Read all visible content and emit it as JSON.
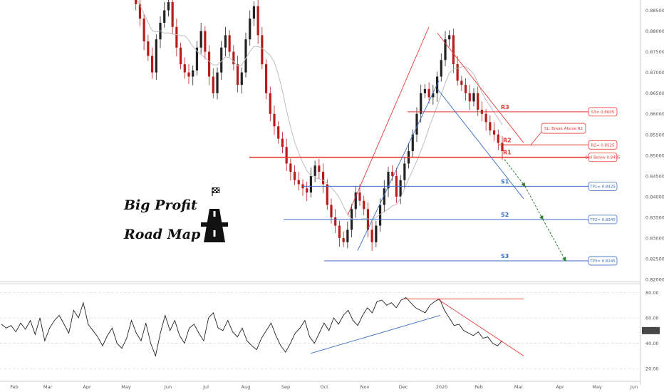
{
  "branding": {
    "line1": "Big Profit",
    "line2": "Road Map",
    "logo_icon": "road-icon",
    "flag_icon": "checkered-flag-icon"
  },
  "colors": {
    "up": "#222222",
    "down": "#b71c1c",
    "resistance": "#e53935",
    "support": "#3a6fc4",
    "projection": "#2e7d32",
    "ma": "#bdbdbd"
  },
  "chart_data": [
    {
      "type": "candlestick",
      "title": "",
      "x_tick_labels": [
        "Feb",
        "Mar",
        "Apr",
        "May",
        "Jun",
        "Jul",
        "Aug",
        "Sep",
        "Oct",
        "Nov",
        "Dec",
        "2020",
        "Feb",
        "Mar",
        "Apr",
        "May",
        "Jun"
      ],
      "y_tick_labels": [
        "0.88500",
        "0.88000",
        "0.87500",
        "0.87000",
        "0.86500",
        "0.86000",
        "0.85500",
        "0.85000",
        "0.84500",
        "0.84000",
        "0.83500",
        "0.83000",
        "0.82500",
        "0.82000"
      ],
      "ylim": [
        0.8195,
        0.8875
      ],
      "series_closes": [
        0.8895,
        0.8865,
        0.883,
        0.8775,
        0.874,
        0.87,
        0.878,
        0.882,
        0.885,
        0.887,
        0.881,
        0.876,
        0.872,
        0.87,
        0.869,
        0.8705,
        0.876,
        0.88,
        0.875,
        0.869,
        0.865,
        0.87,
        0.876,
        0.879,
        0.875,
        0.872,
        0.867,
        0.87,
        0.878,
        0.883,
        0.886,
        0.879,
        0.872,
        0.865,
        0.86,
        0.857,
        0.854,
        0.852,
        0.848,
        0.846,
        0.844,
        0.843,
        0.842,
        0.841,
        0.845,
        0.8475,
        0.846,
        0.843,
        0.838,
        0.835,
        0.833,
        0.83,
        0.829,
        0.832,
        0.837,
        0.841,
        0.839,
        0.837,
        0.832,
        0.829,
        0.833,
        0.838,
        0.842,
        0.846,
        0.845,
        0.84,
        0.844,
        0.848,
        0.851,
        0.855,
        0.86,
        0.865,
        0.866,
        0.864,
        0.865,
        0.869,
        0.873,
        0.878,
        0.879,
        0.872,
        0.868,
        0.867,
        0.865,
        0.863,
        0.865,
        0.861,
        0.86,
        0.858,
        0.856,
        0.855,
        0.853,
        0.851
      ],
      "moving_average": "gray",
      "levels": [
        {
          "name": "R3",
          "value": 0.8605,
          "box": "S3= 0.8605",
          "color": "resistance"
        },
        {
          "name": "R2",
          "value": 0.8525,
          "box": "R2= 0.8525",
          "color": "resistance"
        },
        {
          "name": "R1",
          "value": 0.8495,
          "box": "Sell Below 0.8495",
          "color": "resistance"
        },
        {
          "name": "S1",
          "value": 0.8425,
          "box": "TP1= 0.8425",
          "color": "support"
        },
        {
          "name": "S2",
          "value": 0.8345,
          "box": "TP2= 0.8345",
          "color": "support"
        },
        {
          "name": "S3",
          "value": 0.8245,
          "box": "TP3= 0.8245",
          "color": "support"
        }
      ],
      "annotations": [
        {
          "text": "SL: Break Above R2"
        }
      ]
    },
    {
      "type": "line",
      "title": "",
      "y_tick_labels": [
        "80.00",
        "60.00",
        "50.00",
        "40.00",
        "20.00"
      ],
      "ylim": [
        10,
        87
      ],
      "current_value": "50.00",
      "values": [
        55,
        52,
        54,
        49,
        56,
        51,
        58,
        47,
        60,
        42,
        52,
        58,
        62,
        55,
        48,
        66,
        60,
        72,
        55,
        50,
        45,
        38,
        46,
        52,
        40,
        36,
        44,
        58,
        48,
        42,
        56,
        40,
        30,
        48,
        62,
        50,
        58,
        46,
        40,
        52,
        55,
        48,
        42,
        60,
        64,
        52,
        50,
        58,
        49,
        45,
        52,
        42,
        38,
        35,
        44,
        50,
        56,
        46,
        38,
        33,
        40,
        48,
        52,
        58,
        45,
        40,
        48,
        56,
        50,
        60,
        55,
        62,
        66,
        58,
        54,
        62,
        68,
        64,
        73,
        74,
        70,
        72,
        68,
        74,
        76,
        72,
        68,
        66,
        64,
        70,
        73,
        75,
        66,
        60,
        54,
        55,
        50,
        48,
        46,
        49,
        44,
        45,
        40,
        38,
        42
      ]
    }
  ]
}
